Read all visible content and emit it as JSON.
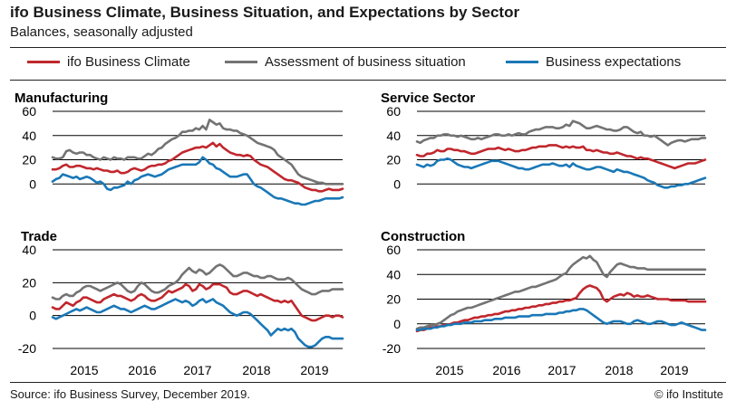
{
  "header": {
    "title": "ifo Business Climate, Business Situation, and Expectations by Sector",
    "subtitle": "Balances, seasonally adjusted"
  },
  "legend": [
    {
      "label": "ifo Business Climate",
      "color": "#c0272d"
    },
    {
      "label": "Assessment of business situation",
      "color": "#737373"
    },
    {
      "label": "Business expectations",
      "color": "#1a78b7"
    }
  ],
  "footer": {
    "source": "Source: ifo Business Survey, December 2019.",
    "copyright": "© ifo Institute"
  },
  "chart_data": [
    {
      "type": "line",
      "title": "Manufacturing",
      "x_start": "2014-07",
      "x_labels": [
        "2015",
        "2016",
        "2017",
        "2018",
        "2019"
      ],
      "yticks": [
        0,
        20,
        40,
        60
      ],
      "ylim": [
        -20,
        60
      ],
      "grid": true,
      "series": [
        {
          "name": "ifo Business Climate",
          "color": "#c0272d",
          "values": [
            12,
            12,
            13,
            15,
            16,
            14,
            14,
            15,
            15,
            14,
            13,
            13,
            12,
            13,
            12,
            11,
            11,
            10,
            10,
            11,
            9,
            9,
            10,
            12,
            13,
            12,
            11,
            12,
            14,
            15,
            15,
            16,
            16,
            17,
            19,
            20,
            22,
            24,
            26,
            27,
            28,
            29,
            30,
            30,
            31,
            30,
            32,
            34,
            31,
            33,
            30,
            28,
            26,
            25,
            24,
            24,
            23,
            24,
            23,
            20,
            18,
            16,
            15,
            14,
            12,
            10,
            8,
            6,
            4,
            3,
            3,
            2,
            1,
            -1,
            -3,
            -4,
            -5,
            -5,
            -6,
            -6,
            -5,
            -4,
            -5,
            -5,
            -5,
            -4
          ]
        },
        {
          "name": "Assessment of business situation",
          "color": "#737373",
          "values": [
            22,
            21,
            21,
            22,
            27,
            28,
            26,
            25,
            26,
            26,
            24,
            24,
            22,
            21,
            20,
            22,
            21,
            20,
            22,
            21,
            21,
            20,
            22,
            22,
            22,
            21,
            21,
            23,
            25,
            24,
            26,
            29,
            30,
            33,
            35,
            37,
            38,
            40,
            43,
            43,
            44,
            44,
            46,
            45,
            48,
            45,
            53,
            51,
            49,
            50,
            46,
            45,
            45,
            44,
            44,
            42,
            41,
            40,
            38,
            36,
            34,
            33,
            32,
            31,
            30,
            28,
            24,
            22,
            20,
            18,
            16,
            12,
            8,
            6,
            5,
            4,
            3,
            2,
            1,
            1,
            0,
            0,
            0,
            0,
            0,
            0
          ]
        },
        {
          "name": "Business expectations",
          "color": "#1a78b7",
          "values": [
            2,
            4,
            5,
            8,
            7,
            6,
            5,
            6,
            4,
            5,
            6,
            5,
            3,
            1,
            2,
            0,
            -4,
            -5,
            -3,
            -3,
            -2,
            -1,
            2,
            0,
            3,
            4,
            6,
            7,
            8,
            7,
            6,
            7,
            8,
            10,
            12,
            13,
            14,
            15,
            16,
            16,
            16,
            16,
            16,
            18,
            22,
            20,
            17,
            16,
            13,
            12,
            10,
            8,
            6,
            6,
            6,
            7,
            8,
            8,
            4,
            0,
            -2,
            -3,
            -5,
            -7,
            -9,
            -11,
            -12,
            -12,
            -13,
            -14,
            -15,
            -16,
            -16,
            -17,
            -17,
            -16,
            -15,
            -14,
            -14,
            -13,
            -12,
            -12,
            -12,
            -12,
            -12,
            -11
          ]
        }
      ]
    },
    {
      "type": "line",
      "title": "Service Sector",
      "x_start": "2014-07",
      "x_labels": [],
      "yticks": [
        0,
        20,
        40,
        60
      ],
      "ylim": [
        -20,
        60
      ],
      "grid": true,
      "series": [
        {
          "name": "ifo Business Climate",
          "color": "#c0272d",
          "values": [
            24,
            23,
            23,
            25,
            25,
            26,
            28,
            27,
            27,
            29,
            29,
            28,
            28,
            27,
            27,
            26,
            25,
            25,
            26,
            27,
            28,
            29,
            29,
            29,
            30,
            29,
            28,
            29,
            28,
            27,
            27,
            28,
            28,
            29,
            30,
            30,
            31,
            31,
            31,
            32,
            32,
            32,
            31,
            30,
            31,
            30,
            31,
            30,
            30,
            31,
            28,
            28,
            27,
            28,
            27,
            26,
            26,
            25,
            25,
            26,
            25,
            24,
            23,
            23,
            22,
            21,
            22,
            21,
            21,
            20,
            19,
            18,
            17,
            16,
            15,
            14,
            13,
            14,
            15,
            16,
            17,
            17,
            17,
            18,
            19,
            20
          ]
        },
        {
          "name": "Assessment of business situation",
          "color": "#737373",
          "values": [
            35,
            34,
            36,
            37,
            38,
            38,
            40,
            40,
            41,
            41,
            40,
            40,
            39,
            40,
            39,
            38,
            37,
            37,
            38,
            37,
            38,
            39,
            40,
            41,
            41,
            40,
            40,
            41,
            40,
            41,
            42,
            41,
            41,
            43,
            44,
            45,
            45,
            46,
            47,
            47,
            47,
            46,
            46,
            47,
            49,
            48,
            52,
            51,
            50,
            48,
            46,
            46,
            47,
            48,
            47,
            46,
            45,
            45,
            44,
            44,
            45,
            47,
            47,
            45,
            43,
            42,
            43,
            40,
            40,
            39,
            40,
            38,
            36,
            34,
            32,
            34,
            35,
            36,
            36,
            35,
            36,
            37,
            37,
            37,
            38,
            38
          ]
        },
        {
          "name": "Business expectations",
          "color": "#1a78b7",
          "values": [
            16,
            15,
            14,
            16,
            15,
            16,
            19,
            20,
            20,
            21,
            20,
            18,
            16,
            15,
            14,
            14,
            13,
            14,
            15,
            16,
            17,
            18,
            19,
            19,
            19,
            18,
            17,
            16,
            15,
            14,
            13,
            13,
            12,
            12,
            13,
            14,
            15,
            16,
            16,
            16,
            17,
            16,
            15,
            15,
            16,
            14,
            17,
            15,
            14,
            13,
            12,
            12,
            13,
            14,
            14,
            13,
            12,
            11,
            10,
            12,
            11,
            10,
            10,
            9,
            8,
            7,
            6,
            5,
            3,
            2,
            1,
            -1,
            -2,
            -3,
            -3,
            -2,
            -2,
            -1,
            -1,
            0,
            0,
            1,
            2,
            3,
            4,
            5
          ]
        }
      ]
    },
    {
      "type": "line",
      "title": "Trade",
      "x_start": "2014-07",
      "x_labels": [
        "2015",
        "2016",
        "2017",
        "2018",
        "2019"
      ],
      "yticks": [
        -20,
        0,
        20,
        40
      ],
      "ylim": [
        -20,
        40
      ],
      "grid": true,
      "series": [
        {
          "name": "ifo Business Climate",
          "color": "#c0272d",
          "values": [
            5,
            4,
            4,
            6,
            8,
            7,
            6,
            8,
            9,
            11,
            11,
            10,
            9,
            8,
            8,
            10,
            11,
            12,
            13,
            12,
            12,
            11,
            10,
            9,
            10,
            12,
            13,
            12,
            10,
            9,
            9,
            10,
            11,
            13,
            15,
            14,
            15,
            16,
            17,
            19,
            18,
            15,
            16,
            19,
            18,
            16,
            17,
            19,
            19,
            19,
            18,
            17,
            14,
            13,
            13,
            14,
            15,
            15,
            14,
            13,
            12,
            13,
            12,
            11,
            10,
            9,
            9,
            8,
            9,
            8,
            9,
            6,
            3,
            0,
            -1,
            -2,
            -3,
            -3,
            -2,
            -1,
            0,
            0,
            -1,
            0,
            0,
            -1
          ]
        },
        {
          "name": "Assessment of business situation",
          "color": "#737373",
          "values": [
            11,
            10,
            10,
            12,
            13,
            12,
            12,
            14,
            15,
            17,
            18,
            18,
            17,
            16,
            15,
            16,
            17,
            18,
            19,
            20,
            19,
            17,
            15,
            14,
            15,
            18,
            20,
            19,
            17,
            15,
            14,
            14,
            15,
            16,
            18,
            19,
            20,
            22,
            25,
            27,
            29,
            27,
            26,
            28,
            27,
            25,
            26,
            28,
            30,
            31,
            30,
            28,
            26,
            24,
            24,
            25,
            26,
            26,
            25,
            24,
            24,
            23,
            23,
            24,
            24,
            23,
            22,
            22,
            22,
            23,
            22,
            20,
            18,
            16,
            15,
            14,
            13,
            13,
            14,
            15,
            15,
            15,
            16,
            16,
            16,
            16
          ]
        },
        {
          "name": "Business expectations",
          "color": "#1a78b7",
          "values": [
            -1,
            -2,
            -1,
            0,
            1,
            2,
            3,
            4,
            3,
            4,
            5,
            4,
            3,
            2,
            2,
            3,
            4,
            5,
            6,
            5,
            4,
            4,
            3,
            2,
            3,
            4,
            5,
            6,
            5,
            4,
            4,
            5,
            6,
            7,
            8,
            9,
            10,
            9,
            8,
            9,
            8,
            6,
            7,
            9,
            10,
            8,
            9,
            10,
            8,
            7,
            6,
            4,
            2,
            1,
            0,
            1,
            2,
            2,
            1,
            -1,
            -3,
            -5,
            -7,
            -9,
            -12,
            -10,
            -8,
            -9,
            -8,
            -9,
            -8,
            -10,
            -14,
            -16,
            -18,
            -19,
            -19,
            -18,
            -16,
            -14,
            -13,
            -13,
            -14,
            -14,
            -14,
            -14
          ]
        }
      ]
    },
    {
      "type": "line",
      "title": "Construction",
      "x_start": "2014-07",
      "x_labels": [
        "2015",
        "2016",
        "2017",
        "2018",
        "2019"
      ],
      "yticks": [
        -20,
        0,
        20,
        40,
        60
      ],
      "ylim": [
        -20,
        60
      ],
      "grid": true,
      "series": [
        {
          "name": "ifo Business Climate",
          "color": "#c0272d",
          "values": [
            -6,
            -5,
            -5,
            -4,
            -3,
            -3,
            -2,
            -2,
            -1,
            -1,
            0,
            1,
            1,
            2,
            3,
            3,
            4,
            5,
            5,
            6,
            6,
            7,
            7,
            8,
            8,
            9,
            10,
            10,
            11,
            11,
            12,
            12,
            13,
            13,
            14,
            14,
            15,
            15,
            16,
            16,
            17,
            17,
            18,
            18,
            19,
            19,
            20,
            21,
            25,
            28,
            30,
            31,
            30,
            29,
            26,
            20,
            18,
            20,
            22,
            23,
            24,
            23,
            25,
            24,
            22,
            23,
            22,
            22,
            23,
            22,
            21,
            20,
            20,
            20,
            20,
            19,
            19,
            19,
            19,
            19,
            18,
            18,
            18,
            18,
            18,
            18
          ]
        },
        {
          "name": "Assessment of business situation",
          "color": "#737373",
          "values": [
            -4,
            -3,
            -3,
            -2,
            -1,
            -1,
            0,
            1,
            3,
            5,
            7,
            8,
            10,
            11,
            12,
            13,
            13,
            14,
            15,
            16,
            17,
            18,
            19,
            20,
            21,
            22,
            23,
            24,
            25,
            26,
            26,
            27,
            28,
            29,
            30,
            30,
            31,
            32,
            33,
            34,
            35,
            36,
            38,
            40,
            41,
            45,
            48,
            50,
            52,
            54,
            53,
            55,
            52,
            50,
            45,
            40,
            38,
            42,
            45,
            48,
            49,
            48,
            47,
            46,
            46,
            45,
            45,
            45,
            44,
            44,
            44,
            44,
            44,
            44,
            44,
            44,
            44,
            44,
            44,
            44,
            44,
            44,
            44,
            44,
            44,
            44
          ]
        },
        {
          "name": "Business expectations",
          "color": "#1a78b7",
          "values": [
            -5,
            -5,
            -4,
            -4,
            -4,
            -3,
            -3,
            -2,
            -2,
            -1,
            -1,
            0,
            0,
            0,
            1,
            1,
            1,
            2,
            2,
            2,
            3,
            3,
            3,
            4,
            4,
            4,
            5,
            5,
            5,
            5,
            6,
            6,
            6,
            6,
            7,
            7,
            7,
            7,
            8,
            8,
            8,
            8,
            9,
            9,
            10,
            10,
            11,
            11,
            12,
            12,
            11,
            9,
            7,
            5,
            3,
            1,
            0,
            1,
            2,
            2,
            2,
            1,
            0,
            0,
            2,
            3,
            2,
            1,
            0,
            0,
            1,
            2,
            2,
            1,
            0,
            -1,
            -1,
            0,
            1,
            0,
            -1,
            -2,
            -3,
            -4,
            -5,
            -5
          ]
        }
      ]
    }
  ]
}
